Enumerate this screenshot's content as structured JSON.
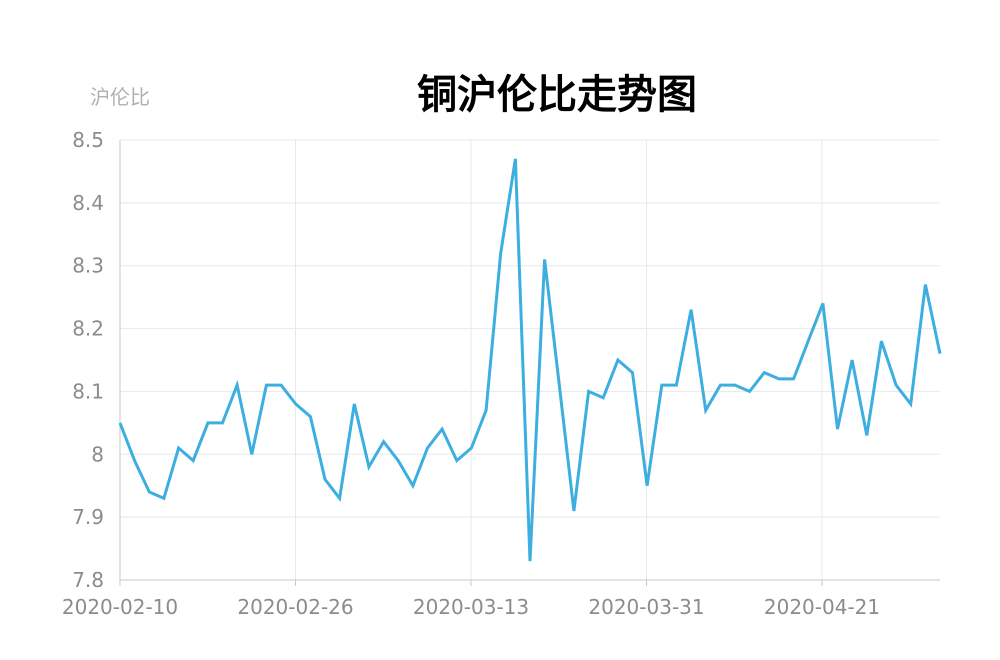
{
  "chart_data": {
    "type": "line",
    "title": "铜沪伦比走势图",
    "xlabel": "",
    "ylabel": "沪伦比",
    "ylim": [
      7.8,
      8.5
    ],
    "yticks": [
      "8.5",
      "8.4",
      "8.3",
      "8.2",
      "8.1",
      "8",
      "7.9",
      "7.8"
    ],
    "xticks": [
      "2020-02-10",
      "2020-02-26",
      "2020-03-13",
      "2020-03-31",
      "2020-04-21"
    ],
    "grid": true,
    "line_color": "#3daee0",
    "series": [
      {
        "values": [
          8.05,
          7.99,
          7.94,
          7.93,
          8.01,
          7.99,
          8.05,
          8.05,
          8.11,
          8.0,
          8.11,
          8.11,
          8.08,
          8.06,
          7.96,
          7.93,
          8.08,
          7.98,
          8.02,
          7.99,
          7.95,
          8.01,
          8.04,
          7.99,
          8.01,
          8.07,
          8.32,
          8.47,
          7.83,
          8.31,
          8.11,
          7.91,
          8.1,
          8.09,
          8.15,
          8.13,
          7.95,
          8.11,
          8.11,
          8.23,
          8.07,
          8.11,
          8.11,
          8.1,
          8.13,
          8.12,
          8.12,
          8.18,
          8.24,
          8.04,
          8.15,
          8.03,
          8.18,
          8.11,
          8.08,
          8.27,
          8.16
        ]
      }
    ]
  }
}
